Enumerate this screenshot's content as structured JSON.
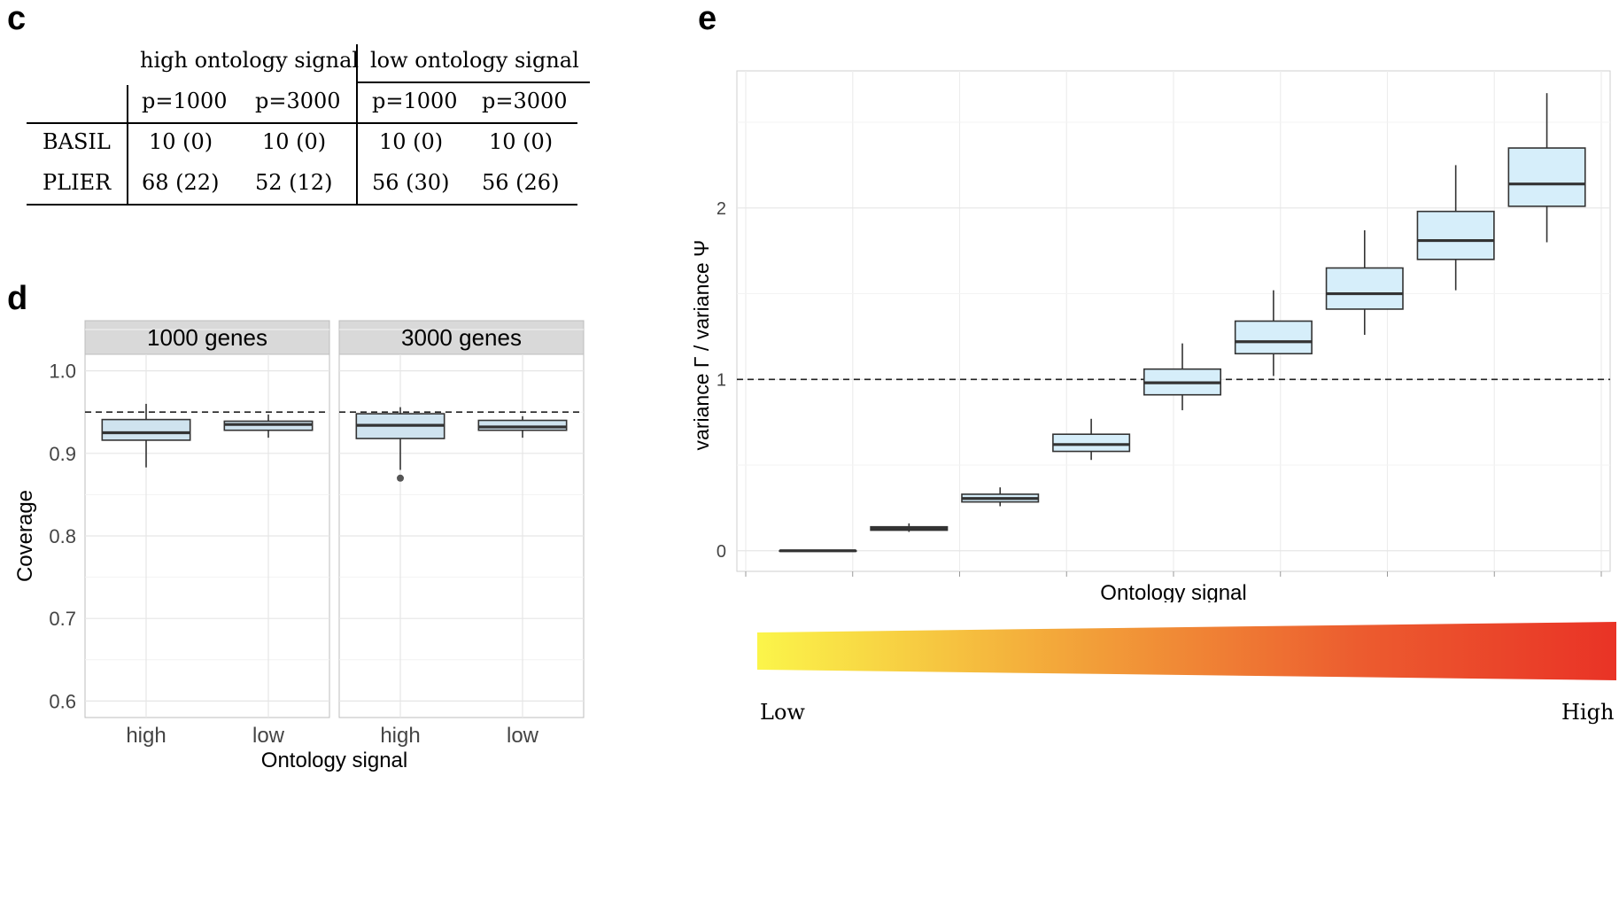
{
  "panels": {
    "c": "c",
    "d": "d",
    "e": "e"
  },
  "table_c": {
    "group_headers": [
      "high ontology signal",
      "low ontology signal"
    ],
    "sub_headers": [
      "p=1000",
      "p=3000",
      "p=1000",
      "p=3000"
    ],
    "rows": [
      {
        "label": "BASIL",
        "cells": [
          "10 (0)",
          "10 (0)",
          "10 (0)",
          "10 (0)"
        ]
      },
      {
        "label": "PLIER",
        "cells": [
          "68 (22)",
          "52 (12)",
          "56 (30)",
          "56 (26)"
        ]
      }
    ]
  },
  "chart_data": [
    {
      "id": "d",
      "type": "boxplot",
      "facets": [
        "1000 genes",
        "3000 genes"
      ],
      "categories": [
        "high",
        "low"
      ],
      "xlabel": "Ontology signal",
      "ylabel": "Coverage",
      "ylim": [
        0.58,
        1.02
      ],
      "yticks": [
        0.6,
        0.7,
        0.8,
        0.9,
        1.0
      ],
      "ytick_labels": [
        "0.6",
        "0.7",
        "0.8",
        "0.9",
        "1.0"
      ],
      "reference_line": 0.95,
      "grid": true,
      "box_color": "#cfe3ef",
      "boxes": [
        {
          "facet": "1000 genes",
          "category": "high",
          "min": 0.883,
          "q1": 0.916,
          "median": 0.925,
          "q3": 0.941,
          "max": 0.96,
          "outliers": []
        },
        {
          "facet": "1000 genes",
          "category": "low",
          "min": 0.919,
          "q1": 0.928,
          "median": 0.935,
          "q3": 0.939,
          "max": 0.947,
          "outliers": []
        },
        {
          "facet": "3000 genes",
          "category": "high",
          "min": 0.88,
          "q1": 0.918,
          "median": 0.934,
          "q3": 0.948,
          "max": 0.956,
          "outliers": [
            0.87
          ]
        },
        {
          "facet": "3000 genes",
          "category": "low",
          "min": 0.919,
          "q1": 0.928,
          "median": 0.932,
          "q3": 0.94,
          "max": 0.945,
          "outliers": []
        }
      ]
    },
    {
      "id": "e",
      "type": "boxplot",
      "xlabel": "Ontology signal",
      "ylabel": "variance Γ / variance Ψ",
      "ylim": [
        -0.12,
        2.8
      ],
      "yticks": [
        0,
        1,
        2
      ],
      "ytick_labels": [
        "0",
        "1",
        "2"
      ],
      "reference_line": 1,
      "grid": true,
      "box_color": "#d6eefa",
      "boxes": [
        {
          "min": 0.0,
          "q1": 0.0,
          "median": 0.0,
          "q3": 0.0,
          "max": 0.0
        },
        {
          "min": 0.11,
          "q1": 0.12,
          "median": 0.13,
          "q3": 0.14,
          "max": 0.16
        },
        {
          "min": 0.26,
          "q1": 0.285,
          "median": 0.305,
          "q3": 0.33,
          "max": 0.37
        },
        {
          "min": 0.53,
          "q1": 0.58,
          "median": 0.62,
          "q3": 0.68,
          "max": 0.77
        },
        {
          "min": 0.82,
          "q1": 0.91,
          "median": 0.98,
          "q3": 1.06,
          "max": 1.21
        },
        {
          "min": 1.02,
          "q1": 1.15,
          "median": 1.22,
          "q3": 1.34,
          "max": 1.52
        },
        {
          "min": 1.26,
          "q1": 1.41,
          "median": 1.5,
          "q3": 1.65,
          "max": 1.87
        },
        {
          "min": 1.52,
          "q1": 1.7,
          "median": 1.81,
          "q3": 1.98,
          "max": 2.25
        },
        {
          "min": 1.8,
          "q1": 2.01,
          "median": 2.14,
          "q3": 2.35,
          "max": 2.67
        }
      ]
    }
  ],
  "gradient": {
    "low_label": "Low",
    "high_label": "High",
    "colors": [
      "#fbf54a",
      "#f3a73a",
      "#ec5c2f",
      "#e93326"
    ]
  }
}
